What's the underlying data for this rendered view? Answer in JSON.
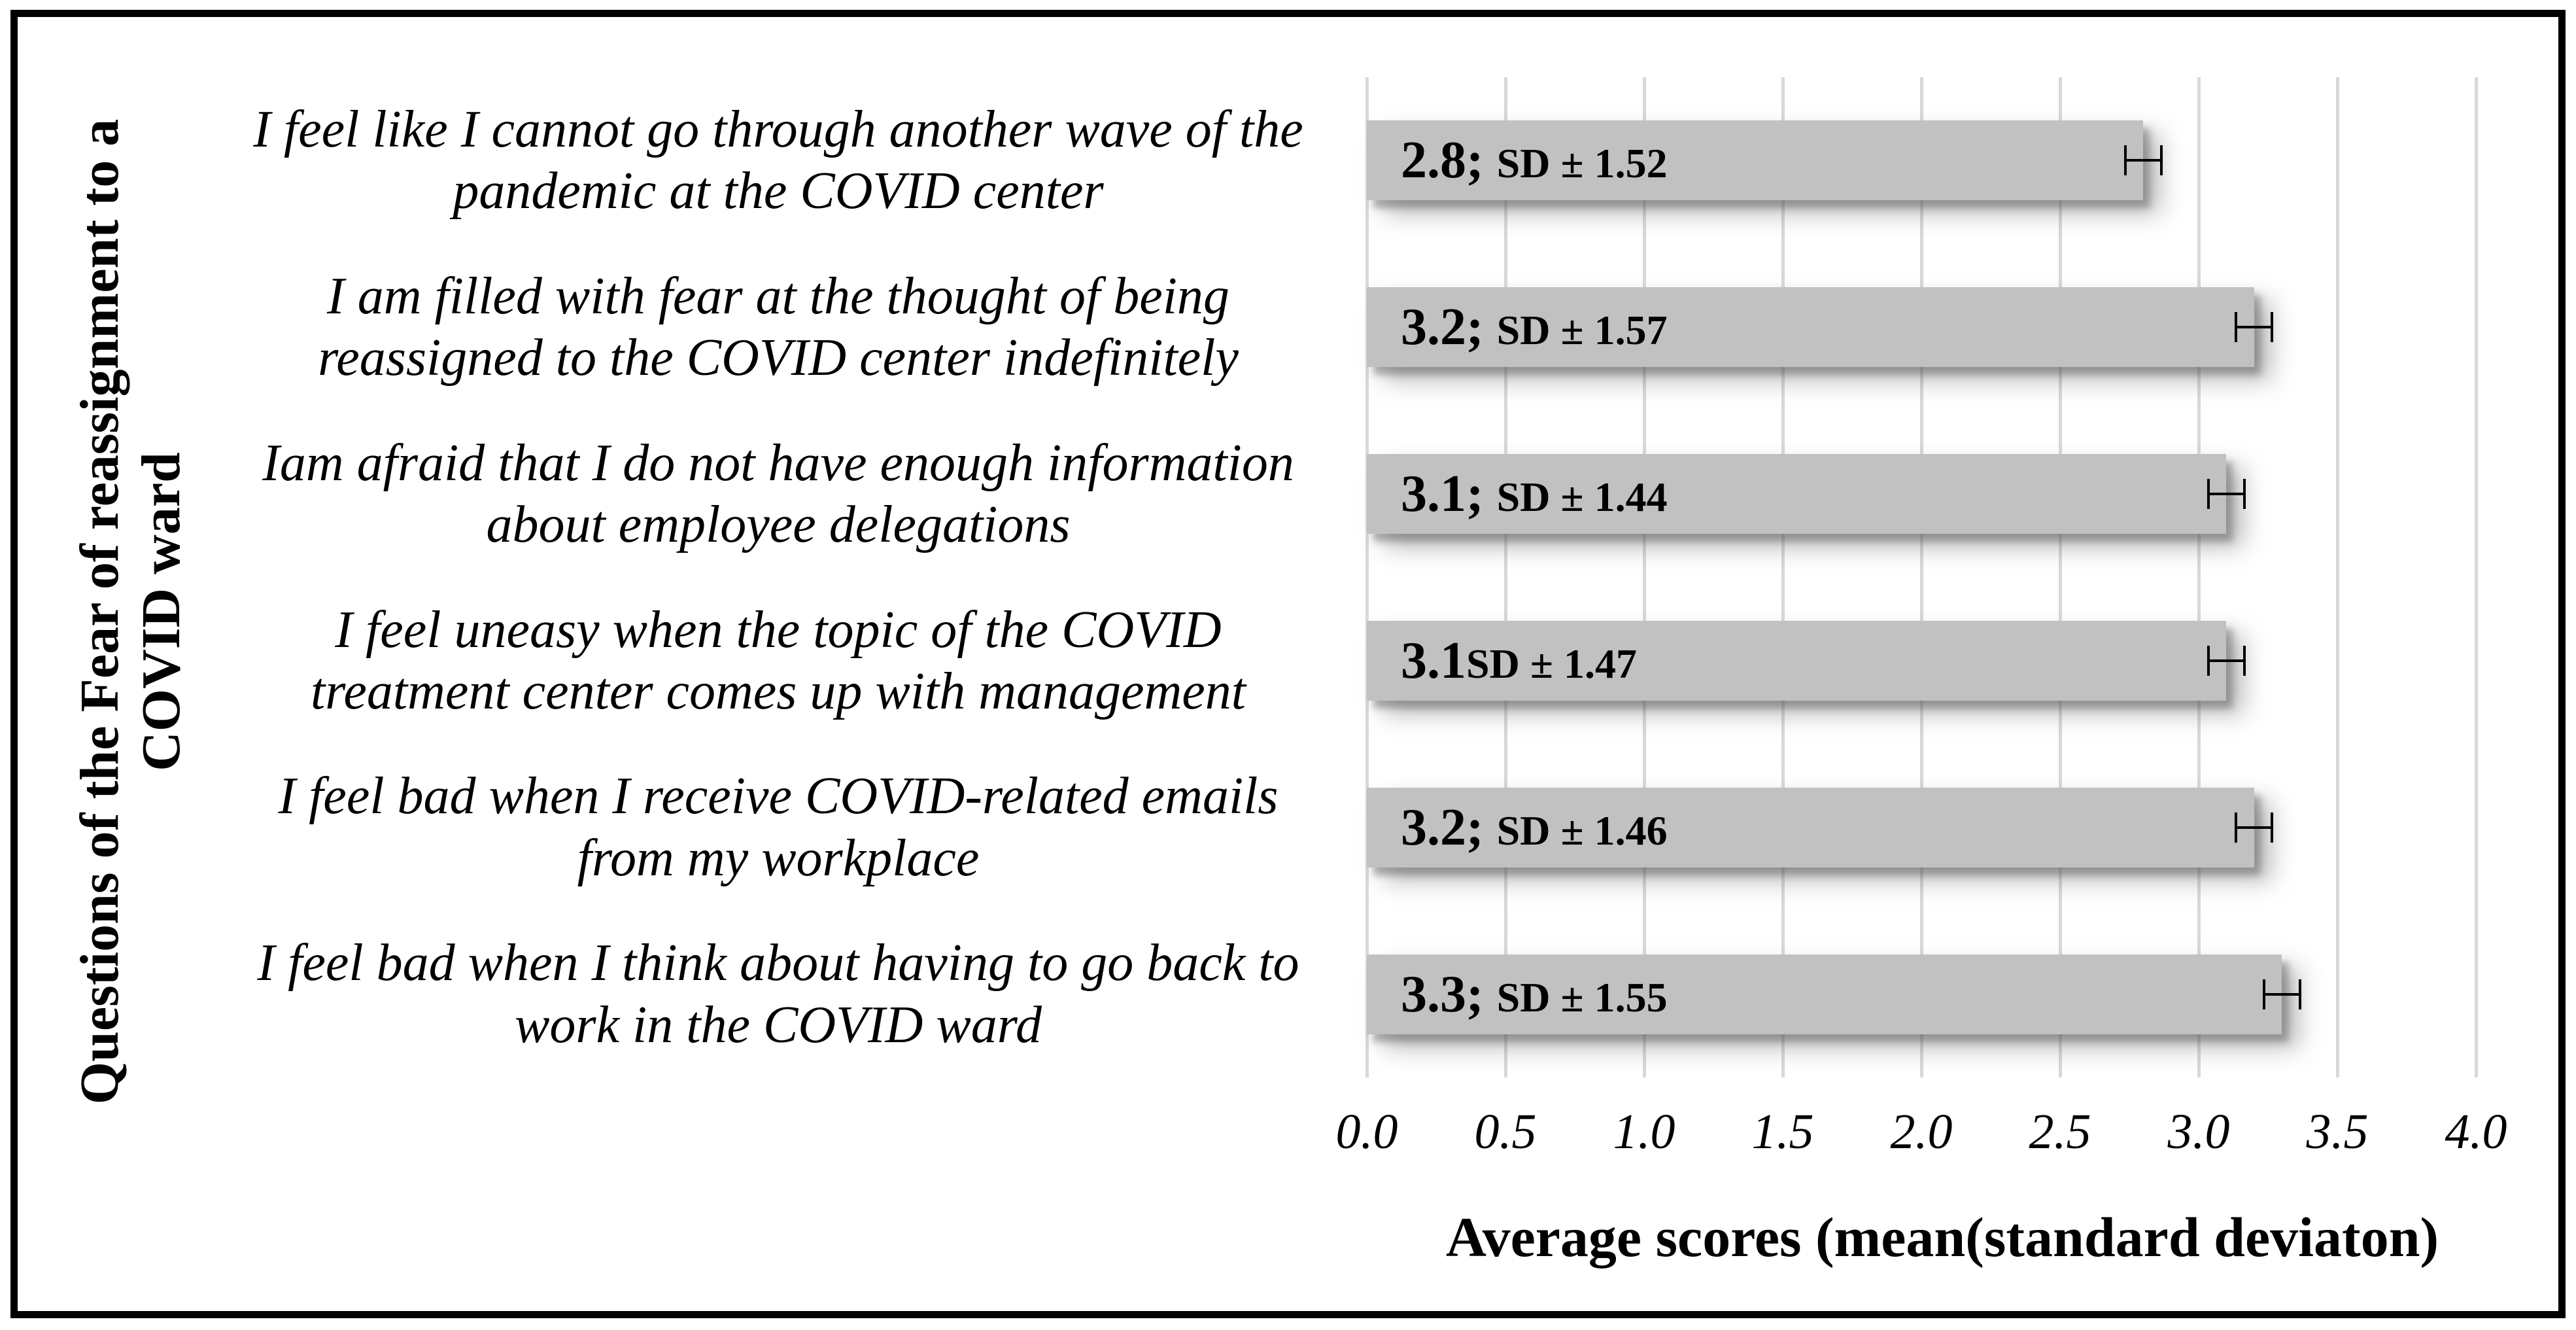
{
  "chart_data": {
    "type": "bar",
    "orientation": "horizontal",
    "title": "",
    "xlabel": "Average scores (mean(standard deviaton)",
    "ylabel": "Questions of the Fear of reassignment to a COVID ward",
    "ylabel_lines": [
      "Questions of the Fear of reassignment to a",
      "COVID ward"
    ],
    "categories": [
      [
        "I feel like I cannot go through another wave of the",
        "pandemic at the COVID center"
      ],
      [
        "I am filled with fear at the thought of being",
        "reassigned to the COVID center indefinitely"
      ],
      [
        "Iam afraid that I do not have enough information",
        "about employee delegations"
      ],
      [
        "I feel uneasy when the topic of the COVID",
        "treatment center comes up with management"
      ],
      [
        "I feel bad when I receive COVID-related emails",
        "from my workplace"
      ],
      [
        "I feel bad when I think about having to go back to",
        "work in the COVID ward"
      ]
    ],
    "values": [
      2.8,
      3.2,
      3.1,
      3.1,
      3.2,
      3.3
    ],
    "sd": [
      1.52,
      1.57,
      1.44,
      1.47,
      1.46,
      1.55
    ],
    "bar_labels": [
      {
        "mean": "2.8; ",
        "sd": "SD ± 1.52"
      },
      {
        "mean": "3.2; ",
        "sd": "SD ± 1.57"
      },
      {
        "mean": "3.1; ",
        "sd": "SD ± 1.44"
      },
      {
        "mean": "3.1",
        "sd": "SD ± 1.47"
      },
      {
        "mean": "3.2; ",
        "sd": "SD ± 1.46"
      },
      {
        "mean": "3.3; ",
        "sd": "SD ± 1.55"
      }
    ],
    "x_ticks": [
      "0.0",
      "0.5",
      "1.0",
      "1.5",
      "2.0",
      "2.5",
      "3.0",
      "3.5",
      "4.0"
    ],
    "xlim": [
      0,
      4
    ],
    "error_halfwidth": 0.07,
    "grid": true,
    "legend": "none",
    "colors": {
      "bar": "#c1c1c1",
      "gridline": "#d9d9d9",
      "text": "#000000",
      "background": "#ffffff",
      "border": "#000000"
    }
  }
}
